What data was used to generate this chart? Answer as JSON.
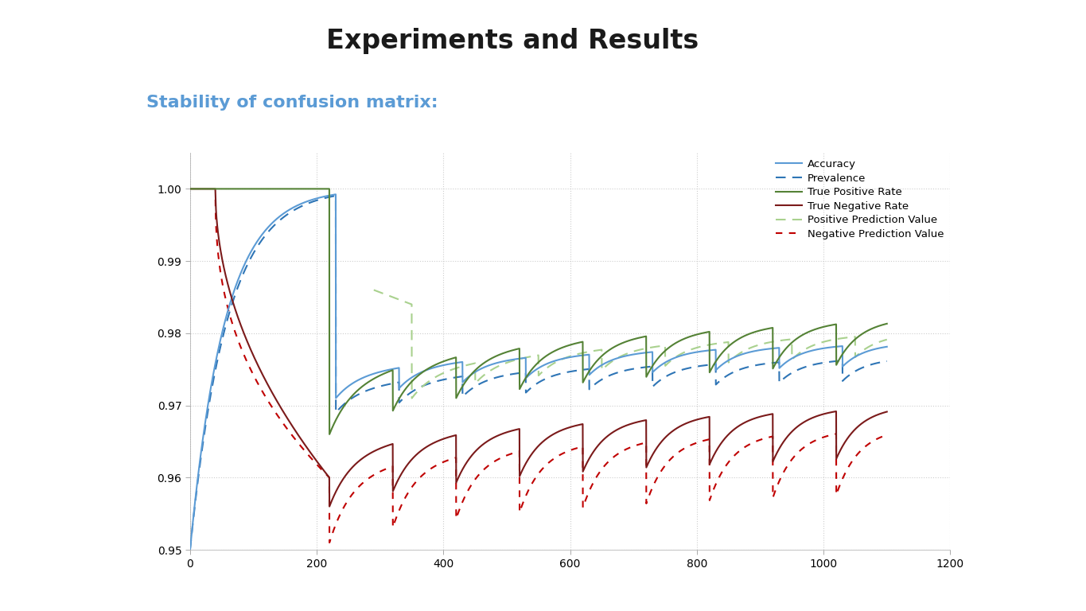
{
  "title": "Experiments and Results",
  "subtitle": "Stability of confusion matrix:",
  "title_color": "#1a1a1a",
  "subtitle_color": "#5b9bd5",
  "xlim": [
    0,
    1200
  ],
  "ylim": [
    0.95,
    1.005
  ],
  "yticks": [
    0.95,
    0.96,
    0.97,
    0.98,
    0.99,
    1.0
  ],
  "xticks": [
    0,
    200,
    400,
    600,
    800,
    1000,
    1200
  ],
  "colors": {
    "accuracy": "#5b9bd5",
    "prevalence": "#2e75b6",
    "tpr": "#548235",
    "tnr": "#7b1a1a",
    "ppv": "#a9d18e",
    "npv": "#c00000"
  },
  "background": "#ffffff",
  "grid_color": "#c8c8c8",
  "sawtooth_period": 100,
  "num_teeth": 9
}
